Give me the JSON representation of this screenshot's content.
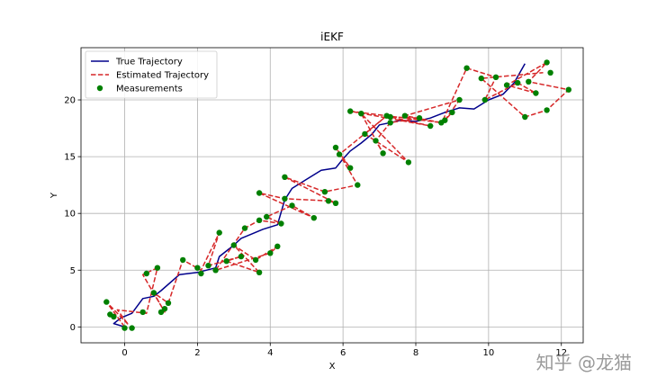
{
  "chart_data": {
    "type": "line",
    "title": "iEKF",
    "xlabel": "X",
    "ylabel": "Y",
    "xlim": [
      -1.2,
      12.6
    ],
    "ylim": [
      -1.4,
      24.6
    ],
    "xticks": [
      0,
      2,
      4,
      6,
      8,
      10,
      12
    ],
    "yticks": [
      0,
      5,
      10,
      15,
      20
    ],
    "grid": true,
    "legend_position": "top-left",
    "series": [
      {
        "name": "True Trajectory",
        "type": "line",
        "color": "#00008b",
        "style": "solid",
        "x": [
          0.0,
          -0.3,
          -0.1,
          0.2,
          0.5,
          0.8,
          1.0,
          1.5,
          2.0,
          2.5,
          2.6,
          3.0,
          3.2,
          3.5,
          3.8,
          4.2,
          4.4,
          4.6,
          5.0,
          5.4,
          5.8,
          6.0,
          6.2,
          6.5,
          6.8,
          7.0,
          7.3,
          7.6,
          8.0,
          8.4,
          8.8,
          9.2,
          9.6,
          10.0,
          10.4,
          10.7,
          11.0
        ],
        "y": [
          0.0,
          0.3,
          0.8,
          1.2,
          2.5,
          2.7,
          3.2,
          4.6,
          4.8,
          5.2,
          6.2,
          7.2,
          7.8,
          8.2,
          8.6,
          9.0,
          11.2,
          12.2,
          13.0,
          13.8,
          14.0,
          14.8,
          15.5,
          16.2,
          17.0,
          17.8,
          18.0,
          18.2,
          18.1,
          18.4,
          18.9,
          19.3,
          19.2,
          20.0,
          20.5,
          21.5,
          23.2
        ]
      },
      {
        "name": "Estimated Trajectory",
        "type": "line",
        "color": "#d62728",
        "style": "dashed",
        "x": [
          0.0,
          -0.5,
          0.1,
          -0.2,
          0.6,
          0.9,
          0.5,
          1.1,
          0.8,
          1.2,
          1.6,
          2.1,
          2.6,
          2.3,
          3.2,
          2.8,
          3.7,
          3.0,
          3.6,
          4.2,
          4.0,
          2.5,
          3.3,
          3.7,
          4.3,
          3.9,
          4.6,
          5.2,
          3.7,
          4.4,
          5.6,
          5.8,
          4.4,
          5.5,
          6.4,
          5.8,
          6.2,
          5.9,
          7.2,
          6.6,
          7.8,
          6.5,
          7.1,
          6.9,
          7.3,
          8.1,
          7.3,
          8.4,
          6.2,
          8.7,
          7.7,
          9.2,
          8.8,
          9.0,
          8.7,
          9.4,
          10.2,
          9.9,
          10.8,
          11.3,
          10.5,
          11.6,
          11.1,
          12.2,
          11.6,
          11.0,
          9.8,
          11.5
        ],
        "y": [
          0.0,
          2.2,
          0.2,
          1.5,
          1.2,
          5.2,
          4.6,
          1.3,
          3.0,
          2.1,
          5.9,
          5.0,
          8.3,
          5.4,
          6.2,
          5.8,
          4.8,
          7.2,
          5.9,
          7.1,
          6.5,
          5.0,
          8.7,
          9.4,
          9.1,
          9.7,
          10.7,
          9.6,
          11.8,
          11.3,
          11.1,
          10.9,
          13.2,
          11.9,
          12.5,
          15.8,
          14.0,
          15.2,
          18.6,
          17.0,
          14.5,
          18.8,
          15.3,
          16.4,
          18.0,
          18.4,
          18.5,
          17.7,
          19.0,
          18.0,
          18.6,
          20.0,
          18.2,
          18.9,
          17.9,
          22.8,
          22.0,
          20.0,
          21.5,
          20.6,
          21.3,
          23.3,
          21.6,
          20.9,
          19.1,
          18.5,
          21.9,
          22.4
        ]
      },
      {
        "name": "Measurements",
        "type": "scatter",
        "color": "#008000",
        "x": [
          -0.5,
          -0.4,
          0.0,
          -0.3,
          0.2,
          0.5,
          0.6,
          0.9,
          1.0,
          1.1,
          0.8,
          1.2,
          1.6,
          2.0,
          2.1,
          2.6,
          2.3,
          3.2,
          2.8,
          3.7,
          3.0,
          3.6,
          4.2,
          4.0,
          2.5,
          3.3,
          3.7,
          4.3,
          3.9,
          4.6,
          5.2,
          3.7,
          4.4,
          5.6,
          5.8,
          4.4,
          5.5,
          6.4,
          5.8,
          6.2,
          5.9,
          7.2,
          6.6,
          7.8,
          6.5,
          7.1,
          6.9,
          7.3,
          8.1,
          7.3,
          8.4,
          6.2,
          8.7,
          7.7,
          9.2,
          8.8,
          9.0,
          9.4,
          10.2,
          9.9,
          10.8,
          11.3,
          10.5,
          11.6,
          11.1,
          12.2,
          11.6,
          11.0,
          9.8,
          11.7
        ],
        "y": [
          2.2,
          1.1,
          -0.1,
          0.9,
          -0.1,
          1.3,
          4.7,
          5.2,
          1.3,
          1.6,
          3.0,
          2.1,
          5.9,
          5.2,
          4.7,
          8.3,
          5.4,
          6.2,
          5.8,
          4.8,
          7.2,
          5.9,
          7.1,
          6.5,
          5.0,
          8.7,
          9.4,
          9.1,
          9.7,
          10.7,
          9.6,
          11.8,
          11.3,
          11.1,
          10.9,
          13.2,
          11.9,
          12.5,
          15.8,
          14.0,
          15.2,
          18.6,
          17.0,
          14.5,
          18.8,
          15.3,
          16.4,
          18.0,
          18.4,
          18.5,
          17.7,
          19.0,
          18.0,
          18.6,
          20.0,
          18.2,
          18.9,
          22.8,
          22.0,
          20.0,
          21.5,
          20.6,
          21.3,
          23.3,
          21.6,
          20.9,
          19.1,
          18.5,
          21.9,
          22.4
        ]
      }
    ]
  },
  "watermark": "知乎 @龙猫"
}
